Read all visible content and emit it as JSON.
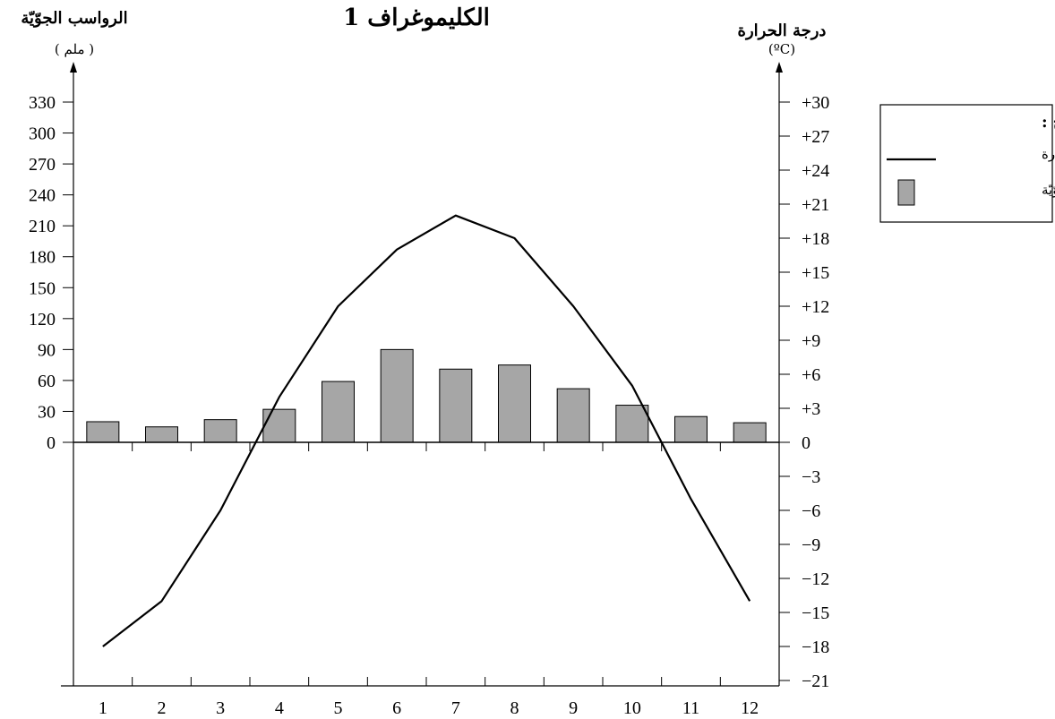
{
  "chart_data": {
    "type": "bar",
    "title": "الكليموغراف 1",
    "months": [
      "1",
      "2",
      "3",
      "4",
      "5",
      "6",
      "7",
      "8",
      "9",
      "10",
      "11",
      "12"
    ],
    "precipitation": {
      "axis_title": "الرواسب الجوّيّة",
      "unit": "( ملم )",
      "ticks": [
        "330",
        "300",
        "270",
        "240",
        "210",
        "180",
        "150",
        "120",
        "90",
        "60",
        "30",
        "0"
      ],
      "tick_values": [
        330,
        300,
        270,
        240,
        210,
        180,
        150,
        120,
        90,
        60,
        30,
        0
      ],
      "ylim": [
        0,
        330
      ],
      "values": [
        20,
        15,
        22,
        32,
        59,
        90,
        71,
        75,
        52,
        36,
        25,
        19
      ],
      "color": "#a6a6a6"
    },
    "temperature": {
      "axis_title": "درجة الحرارة",
      "unit": "(ºC)",
      "ticks": [
        "+30",
        "+27",
        "+24",
        "+21",
        "+18",
        "+15",
        "+12",
        "+9",
        "+6",
        "+3",
        "0",
        "−3",
        "−6",
        "−9",
        "−12",
        "−15",
        "−18",
        "−21"
      ],
      "tick_values": [
        30,
        27,
        24,
        21,
        18,
        15,
        12,
        9,
        6,
        3,
        0,
        -3,
        -6,
        -9,
        -12,
        -15,
        -18,
        -21
      ],
      "ylim": [
        -21,
        30
      ],
      "values": [
        -18,
        -14,
        -6,
        4,
        12,
        17,
        20,
        18,
        12,
        5,
        -5,
        -14
      ],
      "color": "#000000"
    },
    "legend": {
      "title": "مفتاح :",
      "line_label": "درجة الحرارة",
      "bar_label": "الرواسب الجوّيّة"
    },
    "grid": false
  }
}
